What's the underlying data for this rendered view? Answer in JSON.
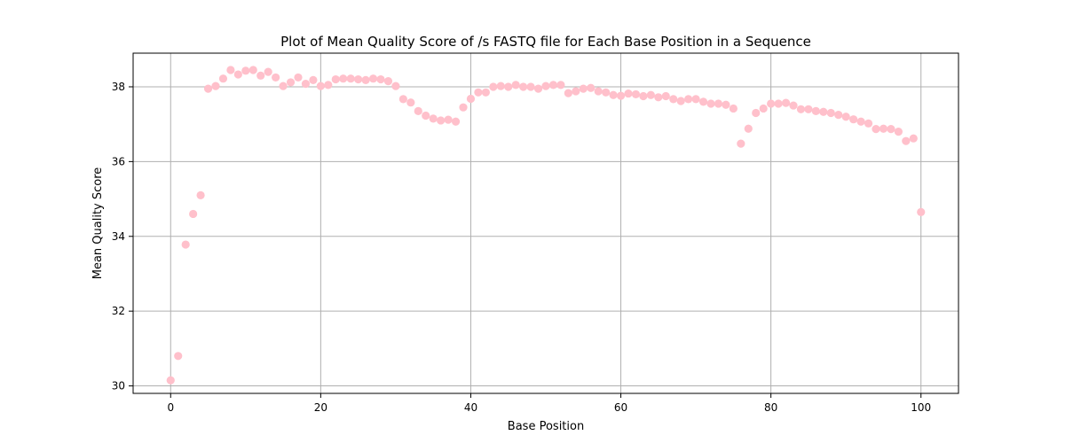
{
  "chart_data": {
    "type": "scatter",
    "title": "Plot of Mean Quality Score of /s FASTQ file for Each Base Position in a Sequence",
    "xlabel": "Base Position",
    "ylabel": "Mean Quality Score",
    "xlim": [
      -5,
      105
    ],
    "ylim": [
      29.8,
      38.9
    ],
    "xticks": [
      0,
      20,
      40,
      60,
      80,
      100
    ],
    "yticks": [
      30,
      32,
      34,
      36,
      38
    ],
    "grid": true,
    "marker_color": "#ffc0cb",
    "x": [
      0,
      1,
      2,
      3,
      4,
      5,
      6,
      7,
      8,
      9,
      10,
      11,
      12,
      13,
      14,
      15,
      16,
      17,
      18,
      19,
      20,
      21,
      22,
      23,
      24,
      25,
      26,
      27,
      28,
      29,
      30,
      31,
      32,
      33,
      34,
      35,
      36,
      37,
      38,
      39,
      40,
      41,
      42,
      43,
      44,
      45,
      46,
      47,
      48,
      49,
      50,
      51,
      52,
      53,
      54,
      55,
      56,
      57,
      58,
      59,
      60,
      61,
      62,
      63,
      64,
      65,
      66,
      67,
      68,
      69,
      70,
      71,
      72,
      73,
      74,
      75,
      76,
      77,
      78,
      79,
      80,
      81,
      82,
      83,
      84,
      85,
      86,
      87,
      88,
      89,
      90,
      91,
      92,
      93,
      94,
      95,
      96,
      97,
      98,
      99,
      100
    ],
    "y": [
      30.15,
      30.8,
      33.78,
      34.6,
      35.1,
      37.95,
      38.02,
      38.22,
      38.45,
      38.33,
      38.43,
      38.45,
      38.3,
      38.4,
      38.25,
      38.02,
      38.12,
      38.25,
      38.08,
      38.18,
      38.02,
      38.05,
      38.2,
      38.22,
      38.22,
      38.2,
      38.18,
      38.22,
      38.2,
      38.15,
      38.02,
      37.67,
      37.58,
      37.35,
      37.23,
      37.15,
      37.1,
      37.12,
      37.07,
      37.45,
      37.68,
      37.85,
      37.85,
      38.0,
      38.02,
      38.0,
      38.05,
      38.0,
      38.0,
      37.95,
      38.02,
      38.05,
      38.05,
      37.83,
      37.88,
      37.95,
      37.97,
      37.88,
      37.85,
      37.78,
      37.76,
      37.82,
      37.8,
      37.75,
      37.78,
      37.72,
      37.75,
      37.67,
      37.62,
      37.67,
      37.67,
      37.6,
      37.55,
      37.55,
      37.52,
      37.42,
      36.48,
      36.88,
      37.3,
      37.42,
      37.55,
      37.55,
      37.57,
      37.5,
      37.4,
      37.4,
      37.35,
      37.33,
      37.3,
      37.25,
      37.2,
      37.13,
      37.07,
      37.02,
      36.87,
      36.88,
      36.87,
      36.8,
      36.55,
      36.62,
      34.65
    ]
  }
}
